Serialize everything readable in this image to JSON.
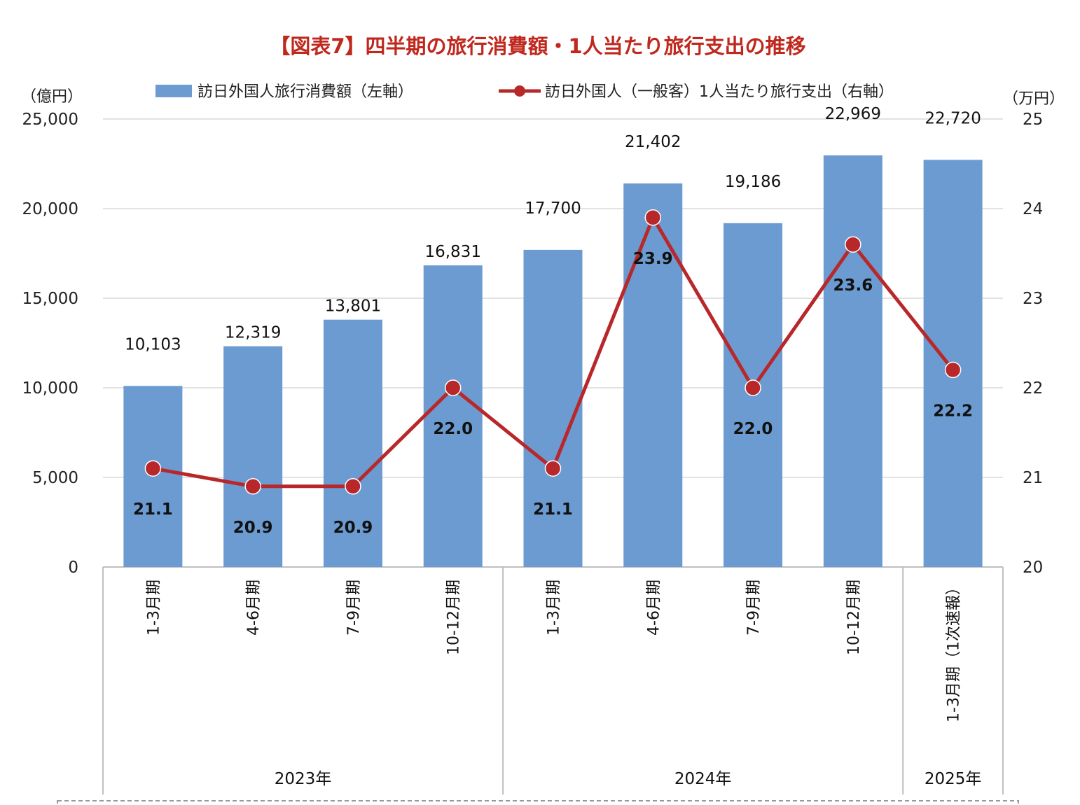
{
  "chart_data": {
    "type": "bar",
    "title": "【図表7】四半期の旅行消費額・1人当たり旅行支出の推移",
    "left_axis": {
      "unit": "（億円）",
      "ylim": [
        0,
        25000
      ],
      "ticks": [
        "0",
        "5,000",
        "10,000",
        "15,000",
        "20,000",
        "25,000"
      ]
    },
    "right_axis": {
      "unit": "（万円）",
      "ylim": [
        20,
        25
      ],
      "ticks": [
        "20",
        "21",
        "22",
        "23",
        "24",
        "25"
      ]
    },
    "categories": [
      "1-3月期",
      "4-6月期",
      "7-9月期",
      "10-12月期",
      "1-3月期",
      "4-6月期",
      "7-9月期",
      "10-12月期",
      "1-3月期（1次速報）"
    ],
    "groups": [
      {
        "label": "2023年",
        "span": 4
      },
      {
        "label": "2024年",
        "span": 4
      },
      {
        "label": "2025年",
        "span": 1
      }
    ],
    "series": [
      {
        "name": "訪日外国人旅行消費額（左軸）",
        "type": "bar",
        "axis": "left",
        "color": "#6b9bd1",
        "values": [
          10103,
          12319,
          13801,
          16831,
          17700,
          21402,
          19186,
          22969,
          22720
        ],
        "labels": [
          "10,103",
          "12,319",
          "13,801",
          "16,831",
          "17,700",
          "21,402",
          "19,186",
          "22,969",
          "22,720"
        ]
      },
      {
        "name": "訪日外国人（一般客）1人当たり旅行支出（右軸）",
        "type": "line",
        "axis": "right",
        "color": "#b8282a",
        "values": [
          21.1,
          20.9,
          20.9,
          22.0,
          21.1,
          23.9,
          22.0,
          23.6,
          22.2
        ],
        "labels": [
          "21.1",
          "20.9",
          "20.9",
          "22.0",
          "21.1",
          "23.9",
          "22.0",
          "23.6",
          "22.2"
        ]
      }
    ],
    "grid": true,
    "legend_position": "top"
  }
}
